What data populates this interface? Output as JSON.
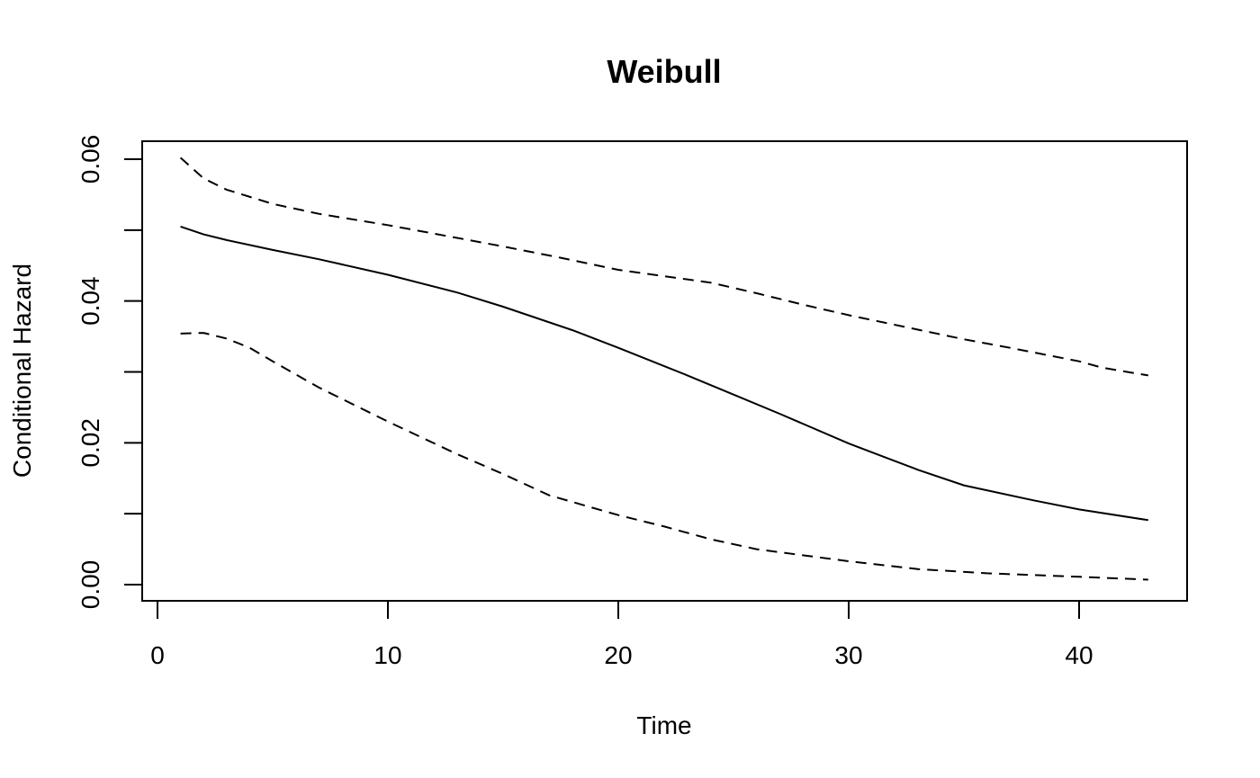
{
  "chart_data": {
    "type": "line",
    "title": "Weibull",
    "xlabel": "Time",
    "ylabel": "Conditional Hazard",
    "xlim": [
      0,
      45
    ],
    "ylim": [
      0,
      0.06
    ],
    "x_ticks": [
      0,
      10,
      20,
      30,
      40
    ],
    "x_tick_labels": [
      "0",
      "10",
      "20",
      "30",
      "40"
    ],
    "y_ticks": [
      0,
      0.01,
      0.02,
      0.03,
      0.04,
      0.05,
      0.06
    ],
    "y_tick_labels": [
      "0.00",
      "",
      "0.02",
      "",
      "0.04",
      "",
      "0.06"
    ],
    "grid": false,
    "legend": "none",
    "series": [
      {
        "line_style": "solid",
        "x": [
          1,
          2,
          3,
          5,
          7,
          10,
          13,
          15,
          18,
          20,
          23,
          25,
          27,
          30,
          33,
          35,
          38,
          40,
          43
        ],
        "y": [
          0.0505,
          0.0494,
          0.0486,
          0.0472,
          0.0459,
          0.0437,
          0.0412,
          0.0392,
          0.0359,
          0.0334,
          0.0295,
          0.0268,
          0.0241,
          0.0199,
          0.0162,
          0.014,
          0.0119,
          0.0106,
          0.0091
        ]
      },
      {
        "line_style": "dashed",
        "x": [
          1,
          2,
          3,
          5,
          7,
          10,
          13,
          15,
          17.5,
          20,
          22,
          24,
          26,
          28,
          30,
          32.5,
          35,
          37,
          40,
          41,
          43
        ],
        "y": [
          0.0602,
          0.0573,
          0.0557,
          0.0537,
          0.0523,
          0.0507,
          0.0489,
          0.0477,
          0.0461,
          0.0444,
          0.0435,
          0.0426,
          0.0411,
          0.0395,
          0.038,
          0.0363,
          0.0346,
          0.0334,
          0.0315,
          0.0306,
          0.0295
        ]
      },
      {
        "line_style": "dashed",
        "x": [
          1,
          2,
          3,
          4,
          5,
          7,
          10,
          13,
          15,
          17,
          20,
          22,
          24,
          26,
          30,
          33,
          36,
          40,
          43
        ],
        "y": [
          0.0354,
          0.0355,
          0.0347,
          0.0334,
          0.0315,
          0.0278,
          0.023,
          0.0184,
          0.0156,
          0.0126,
          0.0098,
          0.0082,
          0.0064,
          0.005,
          0.0033,
          0.0022,
          0.0016,
          0.0011,
          0.0007
        ]
      }
    ]
  }
}
